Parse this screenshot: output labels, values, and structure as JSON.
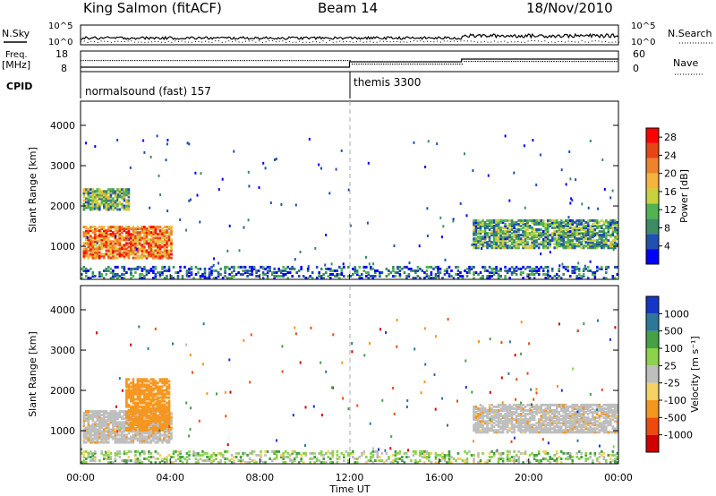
{
  "header": {
    "station": "King Salmon (fitACF)",
    "beam": "Beam 14",
    "date": "18/Nov/2010"
  },
  "top_panels": {
    "nsky_label": "N.Sky",
    "nsky_ticks": [
      "10^5",
      "10^0"
    ],
    "nsearch_label": "N.Search",
    "nsearch_ticks": [
      "10^5",
      "10^0"
    ],
    "freq_label": "Freq.",
    "freq_unit": "[MHz]",
    "freq_ticks": [
      "18",
      "8"
    ],
    "nave_label": "Nave",
    "nave_ticks": [
      "60",
      "0"
    ],
    "cpid_label": "CPID",
    "cpid_segments": [
      {
        "label": "normalsound (fast) 157",
        "start_hour": 0
      },
      {
        "label": "themis 3300",
        "start_hour": 12
      }
    ]
  },
  "colors": {
    "power_scale": [
      "#0000ff",
      "#2050b0",
      "#3c8c64",
      "#50b450",
      "#c8d23c",
      "#f5b43c",
      "#f08228",
      "#e64614",
      "#ff0000"
    ],
    "velocity_scale": [
      "#d20000",
      "#ee4a10",
      "#f5961e",
      "#f5d264",
      "#bebebe",
      "#8cd24b",
      "#46a046",
      "#2d7896",
      "#1437c8"
    ],
    "ground_scatter": "#bebebe"
  },
  "chart_data": [
    {
      "type": "heatmap",
      "panel": "power",
      "ylabel": "Slant Range [km]",
      "yticks": [
        1000,
        2000,
        3000,
        4000
      ],
      "ylim": [
        180,
        4600
      ],
      "xlim": [
        0,
        24
      ],
      "xticks": [
        "00:00",
        "04:00",
        "08:00",
        "12:00",
        "16:00",
        "20:00",
        "00:00"
      ],
      "xlabel": "Time UT",
      "colorbar_label": "Power [dB]",
      "colorbar_ticks": [
        4,
        8,
        12,
        16,
        20,
        24,
        28
      ],
      "colorbar_range": [
        0,
        30
      ],
      "regions": [
        {
          "t0": 0.1,
          "t1": 4.1,
          "r0": 700,
          "r1": 1500,
          "value": 22
        },
        {
          "t0": 0.1,
          "t1": 2.2,
          "r0": 1900,
          "r1": 2400,
          "value": 12
        },
        {
          "t0": 17.5,
          "t1": 24,
          "r0": 950,
          "r1": 1650,
          "value": 10
        },
        {
          "t0": 0,
          "t1": 24,
          "r0": 200,
          "r1": 500,
          "value": 6
        }
      ]
    },
    {
      "type": "heatmap",
      "panel": "velocity",
      "ylabel": "Slant Range [km]",
      "yticks": [
        1000,
        2000,
        3000,
        4000
      ],
      "ylim": [
        180,
        4600
      ],
      "xlim": [
        0,
        24
      ],
      "xticks": [
        "00:00",
        "04:00",
        "08:00",
        "12:00",
        "16:00",
        "20:00",
        "00:00"
      ],
      "xlabel": "Time UT",
      "colorbar_label": "Velocity [m s⁻¹]",
      "colorbar_ticks": [
        "1000",
        "500",
        "100",
        "25",
        "-25",
        "-100",
        "-500",
        "-1000"
      ],
      "colorbar_range": [
        -1500,
        1500
      ],
      "regions": [
        {
          "t0": 0.1,
          "t1": 4.1,
          "r0": 700,
          "r1": 1500,
          "value": "ground_scatter"
        },
        {
          "t0": 2.0,
          "t1": 4.0,
          "r0": 1000,
          "r1": 2300,
          "value": -300
        },
        {
          "t0": 17.5,
          "t1": 24,
          "r0": 950,
          "r1": 1650,
          "value": "ground_scatter"
        },
        {
          "t0": 0,
          "t1": 24,
          "r0": 200,
          "r1": 500,
          "value": 50
        }
      ]
    }
  ],
  "time_axis": {
    "ticks": [
      "00:00",
      "04:00",
      "08:00",
      "12:00",
      "16:00",
      "20:00",
      "00:00"
    ],
    "label": "Time UT"
  }
}
